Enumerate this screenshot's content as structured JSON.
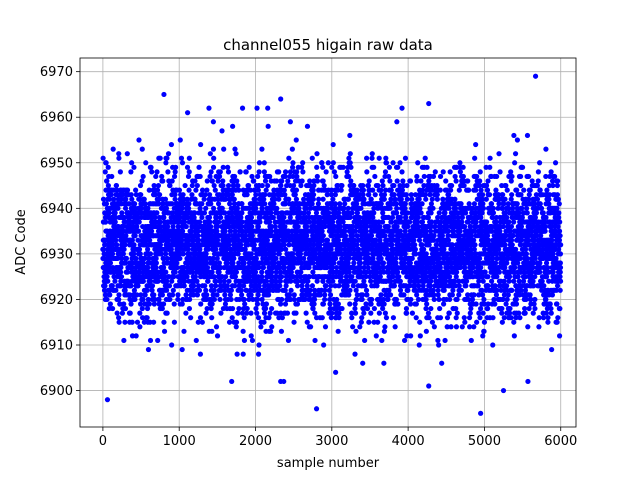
{
  "chart_data": {
    "type": "scatter",
    "title": "channel055 higain raw data",
    "xlabel": "sample number",
    "ylabel": "ADC Code",
    "xlim": [
      -300,
      6200
    ],
    "ylim": [
      6892,
      6973
    ],
    "xticks": [
      0,
      1000,
      2000,
      3000,
      4000,
      5000,
      6000
    ],
    "yticks": [
      6900,
      6910,
      6920,
      6930,
      6940,
      6950,
      6960,
      6970
    ],
    "grid": true,
    "marker_color": "#0000ff",
    "series": [
      {
        "n_samples": 6000,
        "center": 6932,
        "spread": 8,
        "outliers": [
          {
            "x": 60,
            "y": 6898
          },
          {
            "x": 800,
            "y": 6965
          },
          {
            "x": 1110,
            "y": 6961
          },
          {
            "x": 1390,
            "y": 6962
          },
          {
            "x": 1830,
            "y": 6962
          },
          {
            "x": 2020,
            "y": 6962
          },
          {
            "x": 2160,
            "y": 6962
          },
          {
            "x": 2330,
            "y": 6964
          },
          {
            "x": 2330,
            "y": 6902
          },
          {
            "x": 2370,
            "y": 6902
          },
          {
            "x": 2800,
            "y": 6896
          },
          {
            "x": 3050,
            "y": 6904
          },
          {
            "x": 3920,
            "y": 6962
          },
          {
            "x": 4270,
            "y": 6963
          },
          {
            "x": 4270,
            "y": 6901
          },
          {
            "x": 4950,
            "y": 6895
          },
          {
            "x": 5250,
            "y": 6900
          },
          {
            "x": 5570,
            "y": 6902
          },
          {
            "x": 5670,
            "y": 6969
          }
        ]
      }
    ]
  }
}
